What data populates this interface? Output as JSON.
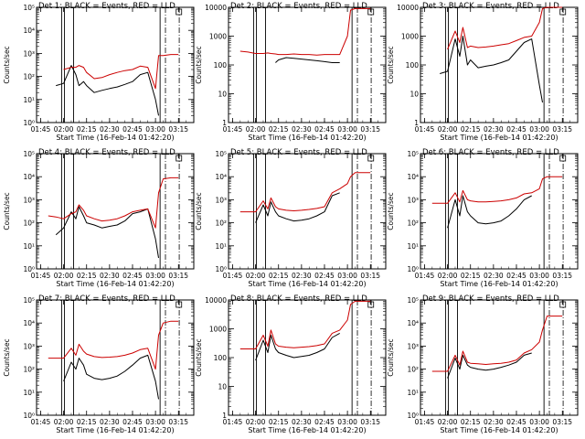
{
  "page": {
    "xlabel": "Start Time (16-Feb-14 01:42:20)",
    "ylabel": "Counts/sec",
    "x_ticks": [
      "01:45",
      "02:00",
      "02:15",
      "02:30",
      "02:45",
      "03:00",
      "03:15"
    ]
  },
  "colors": {
    "events": "#000000",
    "lld": "#cc0000",
    "axis": "#000000"
  },
  "chart_data": [
    {
      "type": "line",
      "title": "Det 1: BLACK = Events, RED = LLD",
      "ylog": true,
      "ylim_exp": [
        0,
        5
      ],
      "y_ticks": [
        "10⁰",
        "10¹",
        "10²",
        "10³",
        "10⁴",
        "10⁵"
      ],
      "x": [
        "01:45",
        "01:50",
        "01:55",
        "02:00",
        "02:05",
        "02:08",
        "02:10",
        "02:13",
        "02:15",
        "02:20",
        "02:25",
        "02:30",
        "02:35",
        "02:40",
        "02:45",
        "02:50",
        "02:55",
        "03:00",
        "03:02",
        "03:05",
        "03:10",
        "03:15"
      ],
      "series": [
        {
          "name": "Events",
          "values": [
            null,
            null,
            40,
            50,
            300,
            120,
            40,
            60,
            40,
            20,
            25,
            30,
            35,
            45,
            60,
            120,
            150,
            10,
            2,
            null,
            null,
            null
          ]
        },
        {
          "name": "LLD",
          "values": [
            null,
            null,
            null,
            200,
            250,
            250,
            300,
            250,
            150,
            80,
            90,
            120,
            150,
            180,
            200,
            280,
            250,
            30,
            800,
            800,
            900,
            900
          ]
        }
      ]
    },
    {
      "type": "line",
      "title": "Det 2: BLACK = Events, RED = LLD",
      "ylog": true,
      "ylim_exp": [
        0,
        4
      ],
      "y_ticks": [
        "1",
        "10",
        "100",
        "1000",
        "10000"
      ],
      "x": [
        "01:45",
        "01:50",
        "01:55",
        "02:00",
        "02:05",
        "02:08",
        "02:10",
        "02:13",
        "02:15",
        "02:20",
        "02:25",
        "02:30",
        "02:35",
        "02:40",
        "02:45",
        "02:50",
        "02:55",
        "03:00",
        "03:02",
        "03:05",
        "03:10",
        "03:15"
      ],
      "series": [
        {
          "name": "Events",
          "values": [
            null,
            null,
            null,
            null,
            null,
            null,
            null,
            120,
            150,
            180,
            170,
            160,
            150,
            140,
            130,
            120,
            120,
            null,
            null,
            null,
            null,
            null
          ]
        },
        {
          "name": "LLD",
          "values": [
            null,
            300,
            280,
            250,
            250,
            260,
            250,
            240,
            230,
            230,
            240,
            230,
            230,
            220,
            230,
            230,
            230,
            1000,
            8000,
            9000,
            9000,
            9000
          ]
        }
      ]
    },
    {
      "type": "line",
      "title": "Det 3: BLACK = Events, RED = LLD",
      "ylog": true,
      "ylim_exp": [
        0,
        4
      ],
      "y_ticks": [
        "1",
        "10",
        "100",
        "1000",
        "10000"
      ],
      "x": [
        "01:45",
        "01:50",
        "01:55",
        "02:00",
        "02:05",
        "02:08",
        "02:10",
        "02:13",
        "02:15",
        "02:20",
        "02:25",
        "02:30",
        "02:35",
        "02:40",
        "02:45",
        "02:50",
        "02:55",
        "03:00",
        "03:02",
        "03:05",
        "03:10",
        "03:15"
      ],
      "series": [
        {
          "name": "Events",
          "values": [
            null,
            null,
            50,
            60,
            800,
            200,
            1000,
            100,
            150,
            80,
            90,
            100,
            120,
            150,
            300,
            600,
            800,
            20,
            5,
            null,
            null,
            null
          ]
        },
        {
          "name": "LLD",
          "values": [
            null,
            null,
            null,
            350,
            1500,
            600,
            2000,
            400,
            450,
            400,
            420,
            450,
            500,
            550,
            700,
            900,
            1000,
            3000,
            9000,
            10000,
            10000,
            10000
          ]
        }
      ]
    },
    {
      "type": "line",
      "title": "Det 4: BLACK = Events, RED = LLD",
      "ylog": true,
      "ylim_exp": [
        0,
        5
      ],
      "y_ticks": [
        "10⁰",
        "10¹",
        "10²",
        "10³",
        "10⁴",
        "10⁵"
      ],
      "x": [
        "01:45",
        "01:50",
        "01:55",
        "02:00",
        "02:05",
        "02:08",
        "02:10",
        "02:13",
        "02:15",
        "02:20",
        "02:25",
        "02:30",
        "02:35",
        "02:40",
        "02:45",
        "02:50",
        "02:55",
        "03:00",
        "03:02",
        "03:05",
        "03:10",
        "03:15"
      ],
      "series": [
        {
          "name": "Events",
          "values": [
            null,
            null,
            30,
            60,
            300,
            150,
            500,
            200,
            100,
            80,
            60,
            70,
            80,
            120,
            250,
            300,
            400,
            20,
            3,
            null,
            null,
            null
          ]
        },
        {
          "name": "LLD",
          "values": [
            null,
            200,
            180,
            150,
            250,
            300,
            600,
            350,
            200,
            150,
            120,
            130,
            150,
            200,
            300,
            350,
            400,
            60,
            2000,
            8000,
            9000,
            9000
          ]
        }
      ]
    },
    {
      "type": "line",
      "title": "Det 5: BLACK = Events, RED = LLD",
      "ylog": true,
      "ylim_exp": [
        0,
        5
      ],
      "y_ticks": [
        "10⁰",
        "10¹",
        "10²",
        "10³",
        "10⁴",
        "10⁵"
      ],
      "x": [
        "01:45",
        "01:50",
        "01:55",
        "02:00",
        "02:05",
        "02:08",
        "02:10",
        "02:13",
        "02:15",
        "02:20",
        "02:25",
        "02:30",
        "02:35",
        "02:40",
        "02:45",
        "02:50",
        "02:55",
        "03:00",
        "03:02",
        "03:05",
        "03:10",
        "03:15"
      ],
      "series": [
        {
          "name": "Events",
          "values": [
            null,
            null,
            null,
            100,
            600,
            200,
            800,
            300,
            200,
            150,
            120,
            130,
            150,
            200,
            300,
            1500,
            2000,
            null,
            null,
            null,
            null,
            null
          ]
        },
        {
          "name": "LLD",
          "values": [
            null,
            300,
            300,
            300,
            900,
            400,
            1200,
            500,
            400,
            350,
            330,
            350,
            380,
            420,
            500,
            2000,
            3000,
            5000,
            10000,
            15000,
            15000,
            15000
          ]
        }
      ]
    },
    {
      "type": "line",
      "title": "Det 6: BLACK = Events, RED = LLD",
      "ylog": true,
      "ylim_exp": [
        0,
        5
      ],
      "y_ticks": [
        "10⁰",
        "10¹",
        "10²",
        "10³",
        "10⁴",
        "10⁵"
      ],
      "x": [
        "01:45",
        "01:50",
        "01:55",
        "02:00",
        "02:05",
        "02:08",
        "02:10",
        "02:13",
        "02:15",
        "02:20",
        "02:25",
        "02:30",
        "02:35",
        "02:40",
        "02:45",
        "02:50",
        "02:55",
        "03:00",
        "03:02",
        "03:05",
        "03:10",
        "03:15"
      ],
      "series": [
        {
          "name": "Events",
          "values": [
            null,
            null,
            null,
            60,
            1000,
            200,
            1500,
            300,
            200,
            100,
            90,
            100,
            120,
            200,
            400,
            1000,
            1500,
            null,
            null,
            null,
            null,
            null
          ]
        },
        {
          "name": "LLD",
          "values": [
            null,
            700,
            700,
            700,
            2000,
            800,
            2500,
            1000,
            900,
            800,
            800,
            850,
            900,
            1000,
            1200,
            1800,
            2000,
            3000,
            8000,
            10000,
            10000,
            10000
          ]
        }
      ]
    },
    {
      "type": "line",
      "title": "Det 7: BLACK = Events, RED = LLD",
      "ylog": true,
      "ylim_exp": [
        0,
        5
      ],
      "y_ticks": [
        "10⁰",
        "10¹",
        "10²",
        "10³",
        "10⁴",
        "10⁵"
      ],
      "x": [
        "01:45",
        "01:50",
        "01:55",
        "02:00",
        "02:05",
        "02:08",
        "02:10",
        "02:13",
        "02:15",
        "02:20",
        "02:25",
        "02:30",
        "02:35",
        "02:40",
        "02:45",
        "02:50",
        "02:55",
        "03:00",
        "03:02",
        "03:05",
        "03:10",
        "03:15"
      ],
      "series": [
        {
          "name": "Events",
          "values": [
            null,
            null,
            null,
            30,
            200,
            100,
            300,
            150,
            60,
            40,
            35,
            40,
            50,
            80,
            150,
            300,
            400,
            30,
            5,
            null,
            null,
            null
          ]
        },
        {
          "name": "LLD",
          "values": [
            null,
            300,
            300,
            300,
            800,
            400,
            1200,
            600,
            450,
            350,
            320,
            330,
            350,
            400,
            500,
            700,
            800,
            100,
            3000,
            10000,
            12000,
            12000
          ]
        }
      ]
    },
    {
      "type": "line",
      "title": "Det 8: BLACK = Events, RED = LLD",
      "ylog": true,
      "ylim_exp": [
        0,
        4
      ],
      "y_ticks": [
        "1",
        "10",
        "100",
        "1000",
        "10000"
      ],
      "x": [
        "01:45",
        "01:50",
        "01:55",
        "02:00",
        "02:05",
        "02:08",
        "02:10",
        "02:13",
        "02:15",
        "02:20",
        "02:25",
        "02:30",
        "02:35",
        "02:40",
        "02:45",
        "02:50",
        "02:55",
        "03:00",
        "03:02",
        "03:05",
        "03:10",
        "03:15"
      ],
      "series": [
        {
          "name": "Events",
          "values": [
            null,
            null,
            null,
            80,
            400,
            150,
            600,
            200,
            150,
            120,
            100,
            110,
            120,
            150,
            200,
            500,
            700,
            null,
            null,
            null,
            null,
            null
          ]
        },
        {
          "name": "LLD",
          "values": [
            null,
            200,
            200,
            200,
            600,
            250,
            900,
            300,
            250,
            230,
            220,
            230,
            240,
            260,
            300,
            700,
            900,
            2000,
            7000,
            9000,
            9000,
            9000
          ]
        }
      ]
    },
    {
      "type": "line",
      "title": "Det 9: BLACK = Events, RED = LLD",
      "ylog": true,
      "ylim_exp": [
        0,
        5
      ],
      "y_ticks": [
        "10⁰",
        "10¹",
        "10²",
        "10³",
        "10⁴",
        "10⁵"
      ],
      "x": [
        "01:45",
        "01:50",
        "01:55",
        "02:00",
        "02:05",
        "02:08",
        "02:10",
        "02:13",
        "02:15",
        "02:20",
        "02:25",
        "02:30",
        "02:35",
        "02:40",
        "02:45",
        "02:50",
        "02:55",
        "03:00",
        "03:02",
        "03:05",
        "03:10",
        "03:15"
      ],
      "series": [
        {
          "name": "Events",
          "values": [
            null,
            null,
            null,
            40,
            300,
            100,
            400,
            150,
            120,
            100,
            90,
            100,
            120,
            150,
            200,
            400,
            500,
            null,
            null,
            null,
            null,
            null
          ]
        },
        {
          "name": "LLD",
          "values": [
            null,
            80,
            80,
            80,
            400,
            150,
            600,
            200,
            180,
            170,
            160,
            170,
            180,
            200,
            250,
            500,
            700,
            1500,
            5000,
            20000,
            20000,
            20000
          ]
        }
      ]
    }
  ]
}
